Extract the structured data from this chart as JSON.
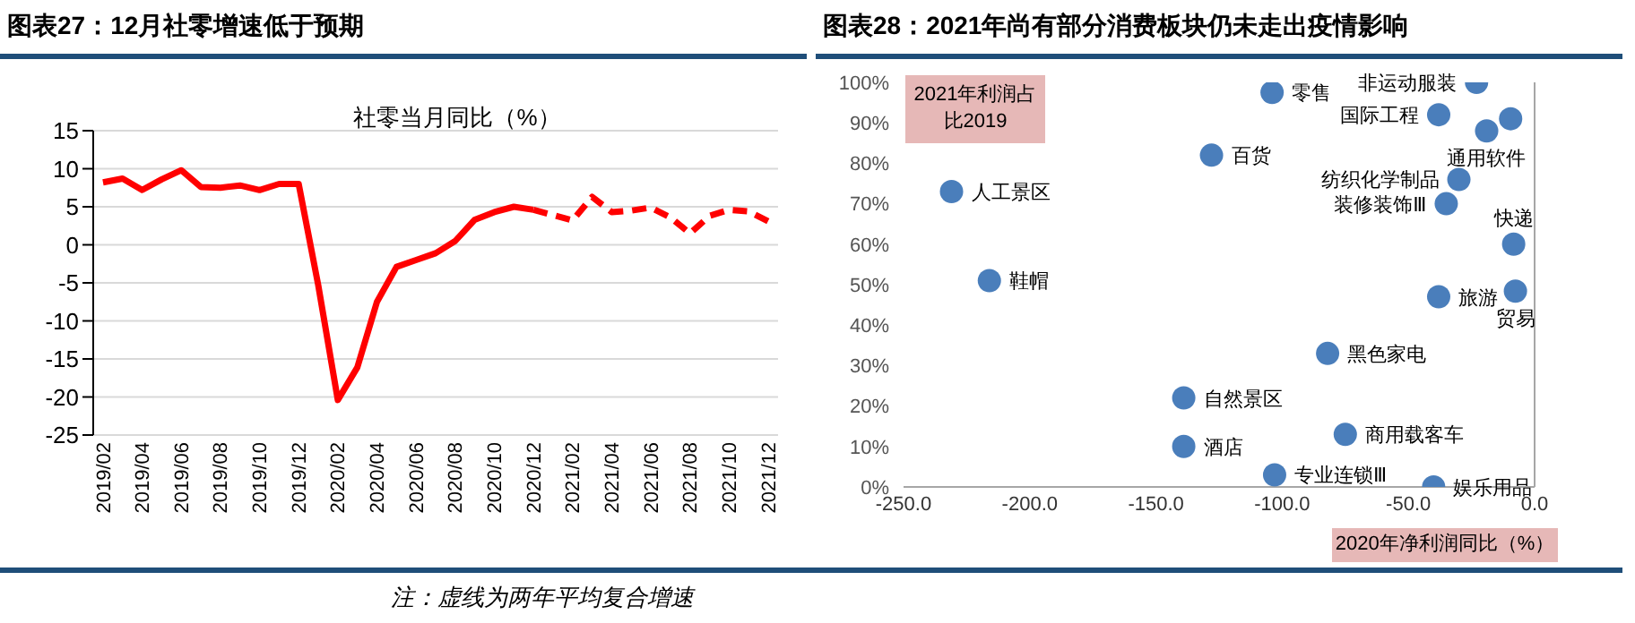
{
  "chart_data": [
    {
      "type": "line",
      "title": "图表27：12月社零增速低于预期",
      "subtitle": "社零当月同比（%）",
      "categories": [
        "2019/02",
        null,
        "2019/04",
        null,
        "2019/06",
        null,
        "2019/08",
        null,
        "2019/10",
        null,
        "2019/12",
        null,
        "2020/02",
        null,
        "2020/04",
        null,
        "2020/06",
        null,
        "2020/08",
        null,
        "2020/10",
        null,
        "2020/12",
        null,
        "2021/02",
        null,
        "2021/04",
        null,
        "2021/06",
        null,
        "2021/08",
        null,
        "2021/10",
        null,
        "2021/12"
      ],
      "series": [
        {
          "color": "#ff0000",
          "line_style": "solid",
          "values": [
            8.2,
            8.7,
            7.2,
            8.6,
            9.8,
            7.6,
            7.5,
            7.8,
            7.2,
            8.0,
            8.0,
            -5.3,
            -20.4,
            -16.1,
            -7.5,
            -2.9,
            -2.0,
            -1.1,
            0.5,
            3.3,
            4.3,
            5.0,
            4.6,
            null,
            null,
            null,
            null,
            null,
            null,
            null,
            null,
            null,
            null,
            null,
            null
          ]
        },
        {
          "color": "#ff0000",
          "line_style": "dashed",
          "values": [
            null,
            null,
            null,
            null,
            null,
            null,
            null,
            null,
            null,
            null,
            null,
            null,
            null,
            null,
            null,
            null,
            null,
            null,
            null,
            null,
            null,
            null,
            4.6,
            3.9,
            3.2,
            6.3,
            4.3,
            4.5,
            4.9,
            3.6,
            1.5,
            3.8,
            4.6,
            4.4,
            3.1
          ]
        }
      ],
      "ylim": [
        -25,
        15
      ],
      "yticks": [
        -25,
        -20,
        -15,
        -10,
        -5,
        0,
        5,
        10,
        15
      ],
      "grid": "y",
      "marker": "none",
      "annotations": [
        "注：虚线为两年平均复合增速"
      ]
    },
    {
      "type": "scatter",
      "title": "图表28：2021年尚有部分消费板块仍未走出疫情影响",
      "xlabel": "2020年净利润同比（%）",
      "ylabel": "2021年利润占比2019",
      "x": [
        -104,
        -23,
        -38,
        -19,
        -128,
        -30,
        -231,
        -35,
        -8.3,
        -216,
        -38,
        -7.6,
        -82,
        -139,
        -75,
        -139,
        -103,
        -40,
        -9.5
      ],
      "values": [
        97.5,
        100,
        92,
        88,
        82,
        76,
        73,
        70,
        60,
        51,
        47,
        48.4,
        33,
        22,
        13,
        10,
        3,
        0,
        91
      ],
      "color": "#4a7ebb",
      "marker": "circle",
      "xlim": [
        -250,
        0
      ],
      "xticks": [
        {
          "value": -250,
          "label": "-250.0"
        },
        {
          "value": -200,
          "label": "-200.0"
        },
        {
          "value": -150,
          "label": "-150.0"
        },
        {
          "value": -100,
          "label": "-100.0"
        },
        {
          "value": -50,
          "label": "-50.0"
        },
        {
          "value": 0,
          "label": "0.0"
        }
      ],
      "ylim": [
        0,
        100
      ],
      "yticks": [
        {
          "value": 0,
          "label": "0%"
        },
        {
          "value": 10,
          "label": "10%"
        },
        {
          "value": 20,
          "label": "20%"
        },
        {
          "value": 30,
          "label": "30%"
        },
        {
          "value": 40,
          "label": "40%"
        },
        {
          "value": 50,
          "label": "50%"
        },
        {
          "value": 60,
          "label": "60%"
        },
        {
          "value": 70,
          "label": "70%"
        },
        {
          "value": 80,
          "label": "80%"
        },
        {
          "value": 90,
          "label": "90%"
        },
        {
          "value": 100,
          "label": "100%"
        }
      ],
      "annotations": [
        {
          "text": "零售",
          "x": -104,
          "y": 97.5
        },
        {
          "text": "非运动服装",
          "x": -23,
          "y": 100
        },
        {
          "text": "国际工程",
          "x": -38,
          "y": 92
        },
        {
          "text": "通用软件",
          "x": -19,
          "y": 88
        },
        {
          "text": "百货",
          "x": -128,
          "y": 82
        },
        {
          "text": "纺织化学制品",
          "x": -30,
          "y": 76
        },
        {
          "text": "人工景区",
          "x": -231,
          "y": 73
        },
        {
          "text": "装修装饰Ⅲ",
          "x": -35,
          "y": 70
        },
        {
          "text": "快递",
          "x": -8.3,
          "y": 60
        },
        {
          "text": "鞋帽",
          "x": -216,
          "y": 51
        },
        {
          "text": "旅游",
          "x": -38,
          "y": 47
        },
        {
          "text": "贸易",
          "x": -7.6,
          "y": 48.4
        },
        {
          "text": "黑色家电",
          "x": -82,
          "y": 33
        },
        {
          "text": "自然景区",
          "x": -139,
          "y": 22
        },
        {
          "text": "商用载客车",
          "x": -75,
          "y": 13
        },
        {
          "text": "酒店",
          "x": -139,
          "y": 10
        },
        {
          "text": "专业连锁Ⅲ",
          "x": -103,
          "y": 3
        },
        {
          "text": "娱乐用品",
          "x": -40,
          "y": 0
        }
      ]
    }
  ]
}
